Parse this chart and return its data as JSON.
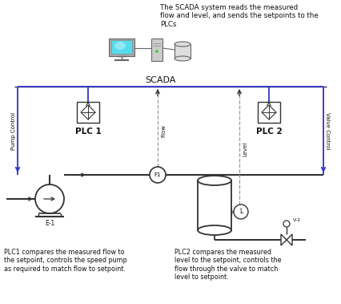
{
  "title_text": "The SCADA system reads the measured\nflow and level, and sends the setpoints to the\nPLCs",
  "scada_label": "SCADA",
  "plc1_label": "PLC 1",
  "plc2_label": "PLC 2",
  "pump_label": "E-1",
  "valve_label": "V-2",
  "flow_label": "Flow",
  "level_label": "Level",
  "pump_control_label": "Pump Control",
  "valve_control_label": "Valve Control",
  "bottom_left_text": "PLC1 compares the measured flow to\nthe setpoint, controls the speed pump\nas required to match flow to setpoint.",
  "bottom_right_text": "PLC2 compares the measured\nlevel to the setpoint, controls the\nflow through the valve to match\nlevel to setpoint.",
  "bg_color": "#ffffff",
  "pipe_color": "#333333",
  "signal_color": "#3333cc",
  "dashed_color": "#999999",
  "monitor_screen_color": "#55ddee",
  "text_color": "#111111"
}
